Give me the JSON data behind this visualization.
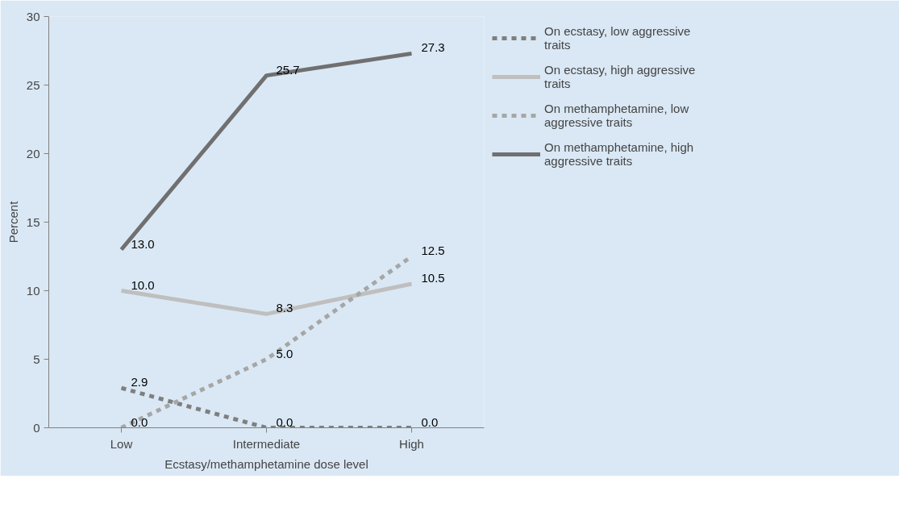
{
  "chart_data": {
    "type": "line",
    "xlabel": "Ecstasy/methamphetamine dose level",
    "ylabel": "Percent",
    "categories": [
      "Low",
      "Intermediate",
      "High"
    ],
    "series": [
      {
        "name": "On ecstasy, low aggressive traits",
        "color": "#7f7f7f",
        "line_style": "dashed",
        "values": [
          2.9,
          0.0,
          0.0
        ],
        "value_labels": [
          "2.9",
          "0.0",
          "0.0"
        ]
      },
      {
        "name": "On ecstasy, high aggressive traits",
        "color": "#bfbfbf",
        "line_style": "solid",
        "values": [
          10.0,
          8.3,
          10.5
        ],
        "value_labels": [
          "10.0",
          "8.3",
          "10.5"
        ]
      },
      {
        "name": "On methamphetamine, low aggressive traits",
        "color": "#a6a6a6",
        "line_style": "dashed",
        "values": [
          0.0,
          5.0,
          12.5
        ],
        "value_labels": [
          "0.0",
          "5.0",
          "12.5"
        ]
      },
      {
        "name": "On methamphetamine, high aggressive traits",
        "color": "#707070",
        "line_style": "solid",
        "values": [
          13.0,
          25.7,
          27.3
        ],
        "value_labels": [
          "13.0",
          "25.7",
          "27.3"
        ]
      }
    ],
    "ylim": [
      0,
      30
    ],
    "yticks": [
      0,
      5,
      10,
      15,
      20,
      25,
      30
    ],
    "grid": false,
    "legend": "right",
    "marker": "none"
  }
}
